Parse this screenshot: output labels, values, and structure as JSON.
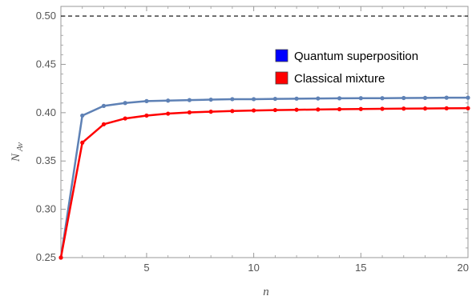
{
  "chart_data": {
    "type": "line",
    "title": "",
    "xlabel": "n",
    "ylabel_main": "N",
    "ylabel_sub": "Av",
    "xlim": [
      1,
      20
    ],
    "ylim": [
      0.25,
      0.51
    ],
    "xticks": [
      5,
      10,
      15,
      20
    ],
    "xtick_labels": [
      "5",
      "10",
      "15",
      "20"
    ],
    "yticks": [
      0.25,
      0.3,
      0.35,
      0.4,
      0.45,
      0.5
    ],
    "ytick_labels": [
      "0.25",
      "0.30",
      "0.35",
      "0.40",
      "0.45",
      "0.50"
    ],
    "grid": false,
    "legend_position": "top-right",
    "reference_line": {
      "y": 0.5,
      "style": "dashed",
      "color": "#000000"
    },
    "x": [
      1,
      2,
      3,
      4,
      5,
      6,
      7,
      8,
      9,
      10,
      11,
      12,
      13,
      14,
      15,
      16,
      17,
      18,
      19,
      20
    ],
    "series": [
      {
        "name": "Quantum superposition",
        "color": "#5e81b5",
        "legend_color": "#0000ff",
        "values": [
          0.25,
          0.397,
          0.407,
          0.41,
          0.412,
          0.4125,
          0.413,
          0.4135,
          0.414,
          0.414,
          0.4143,
          0.4145,
          0.4147,
          0.4149,
          0.415,
          0.415,
          0.4152,
          0.4153,
          0.4155,
          0.4155
        ]
      },
      {
        "name": "Classical mixture",
        "color": "#ff0000",
        "legend_color": "#ff0000",
        "values": [
          0.25,
          0.369,
          0.388,
          0.394,
          0.397,
          0.399,
          0.4003,
          0.401,
          0.4017,
          0.4023,
          0.4027,
          0.403,
          0.4033,
          0.4036,
          0.4038,
          0.404,
          0.4042,
          0.4043,
          0.4045,
          0.4046
        ]
      }
    ]
  }
}
